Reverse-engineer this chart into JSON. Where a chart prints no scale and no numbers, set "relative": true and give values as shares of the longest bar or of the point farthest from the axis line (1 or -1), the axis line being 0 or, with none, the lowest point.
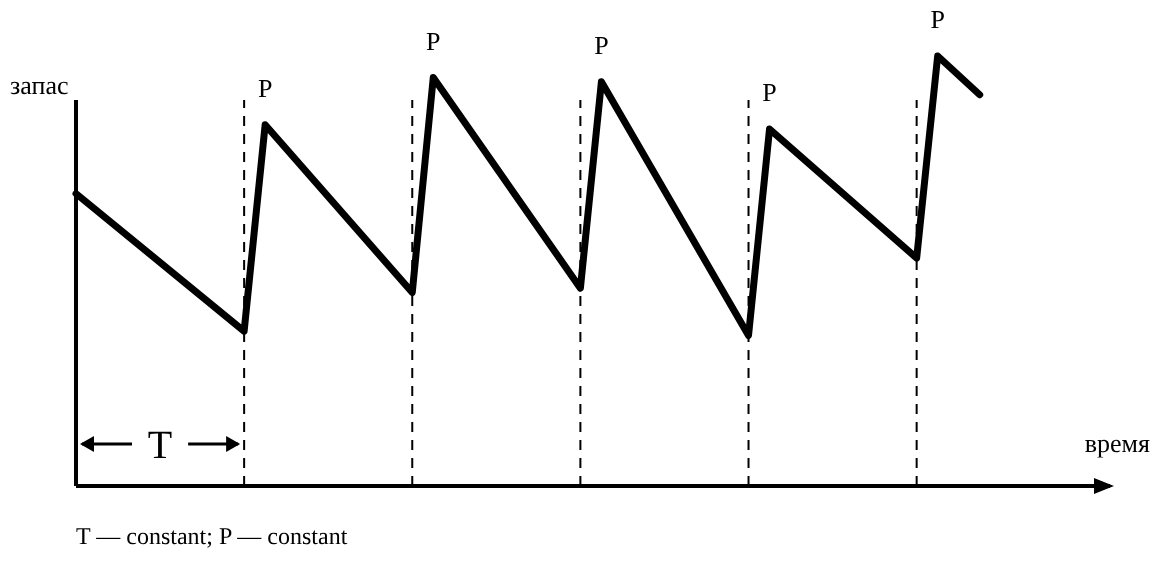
{
  "chart_data": {
    "type": "line",
    "relative": true,
    "xlabel": "время",
    "ylabel": "запас",
    "marker": "none",
    "line_style": "solid",
    "categories": [
      null,
      null,
      null,
      null,
      null,
      null,
      null,
      null,
      null,
      null,
      null,
      null,
      null,
      null,
      null,
      null,
      null,
      null,
      null,
      null,
      null,
      null,
      null,
      null,
      null,
      null,
      null,
      null,
      null,
      null,
      null,
      null,
      null,
      null,
      null,
      null,
      null,
      null,
      null,
      null,
      null,
      null,
      null,
      null,
      null,
      null,
      null,
      null,
      null
    ],
    "series": [
      {
        "color": "#000000",
        "values": [
          0.68,
          null,
          null,
          null,
          null,
          null,
          null,
          null,
          0.36,
          0.84,
          null,
          null,
          null,
          null,
          null,
          null,
          0.45,
          0.95,
          null,
          null,
          null,
          null,
          null,
          null,
          0.46,
          0.94,
          null,
          null,
          null,
          null,
          null,
          null,
          0.35,
          0.83,
          null,
          null,
          null,
          null,
          null,
          null,
          0.53,
          1,
          null,
          0.91,
          null,
          null,
          null,
          null,
          null
        ]
      }
    ],
    "grid": "x",
    "annotations": [
      {
        "text": "P",
        "y": 0.84
      },
      {
        "text": "P",
        "y": 0.95
      },
      {
        "text": "P",
        "y": 0.94
      },
      {
        "text": "P",
        "y": 0.83
      },
      {
        "text": "P",
        "y": 1
      },
      "T",
      "T — constant;  P — constant"
    ]
  }
}
